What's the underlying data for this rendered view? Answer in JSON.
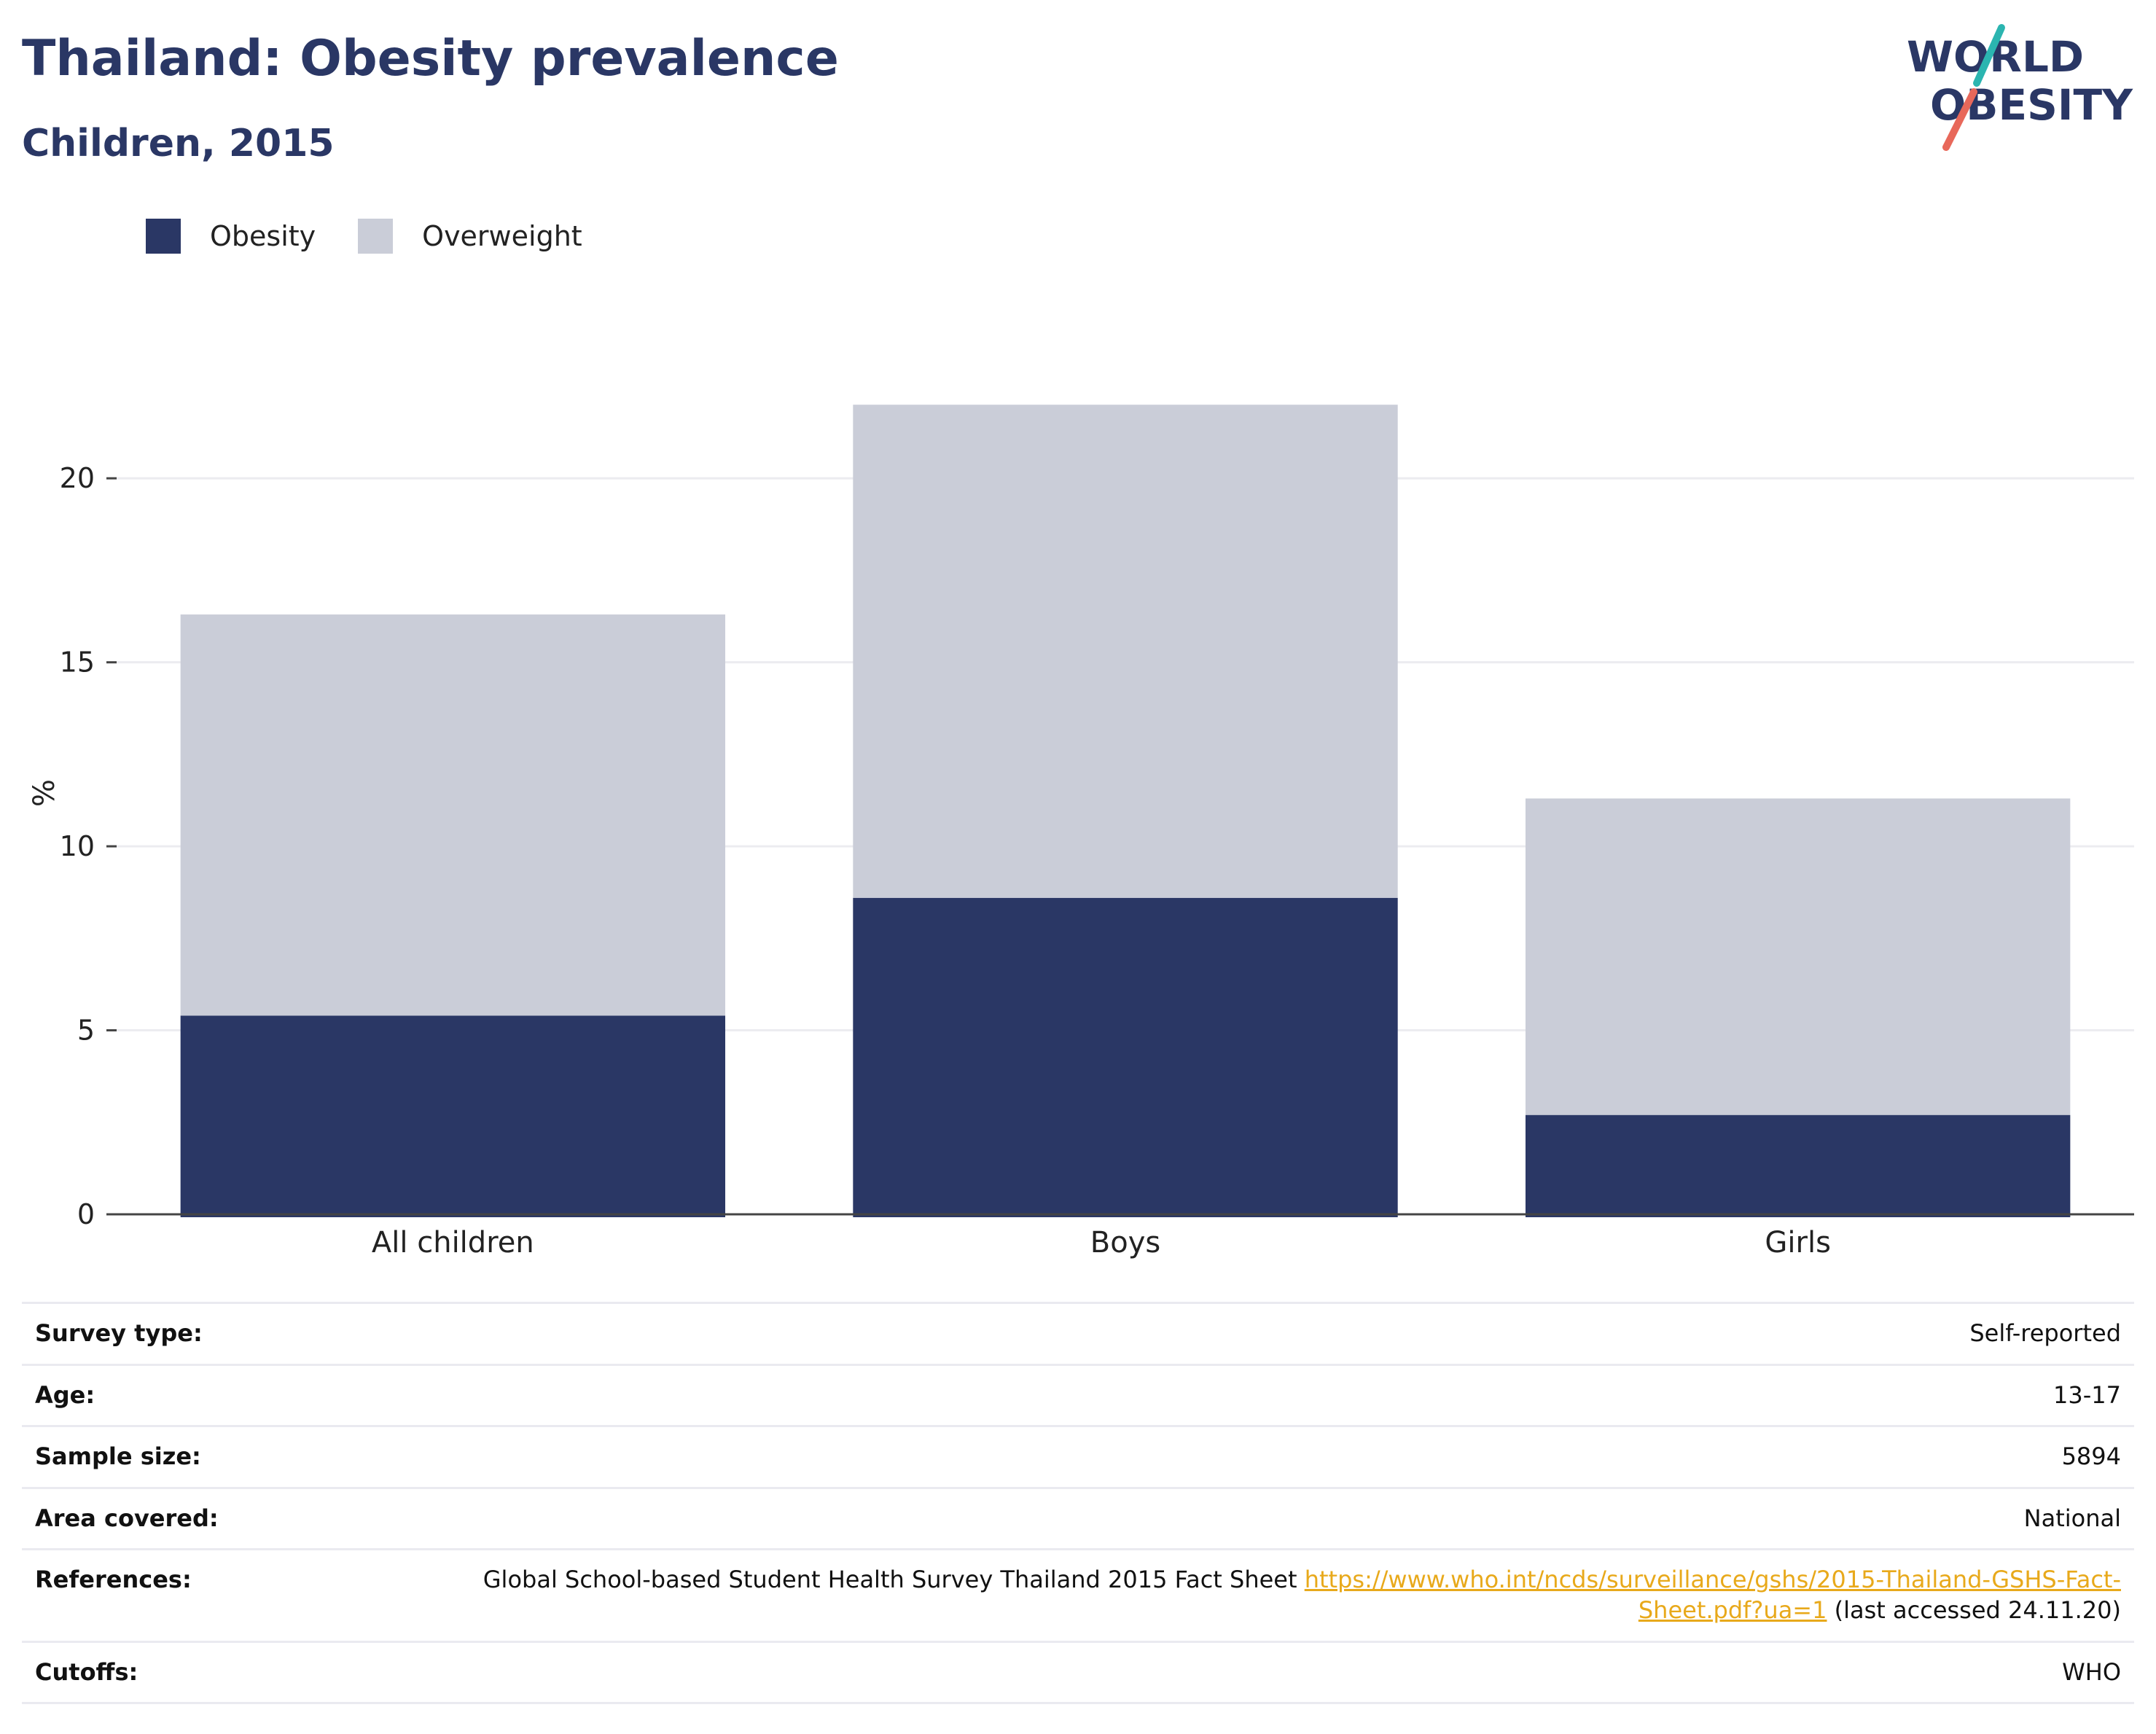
{
  "header": {
    "title": "Thailand: Obesity prevalence",
    "subtitle": "Children, 2015"
  },
  "logo": {
    "line1": "WORLD",
    "line2": "OBESITY"
  },
  "colors": {
    "obesity": "#2a3765",
    "overweight": "#cacdd8",
    "title": "#2a3765",
    "link": "#e8a91b",
    "logo_teal": "#2bb5b0",
    "logo_coral": "#e8685a"
  },
  "chart_data": {
    "type": "bar",
    "stacked": true,
    "categories": [
      "All children",
      "Boys",
      "Girls"
    ],
    "series": [
      {
        "name": "Obesity",
        "values": [
          5.4,
          8.6,
          2.7
        ]
      },
      {
        "name": "Overweight",
        "values": [
          10.9,
          13.4,
          8.6
        ]
      }
    ],
    "ylabel": "%",
    "ylim": [
      0,
      22.5
    ],
    "yticks": [
      0,
      5,
      10,
      15,
      20
    ],
    "grid": true,
    "legend_position": "top-left"
  },
  "metadata": {
    "rows": [
      {
        "label": "Survey type:",
        "value": "Self-reported"
      },
      {
        "label": "Age:",
        "value": "13-17"
      },
      {
        "label": "Sample size:",
        "value": "5894"
      },
      {
        "label": "Area covered:",
        "value": "National"
      },
      {
        "label": "References:",
        "text": "Global School-based Student Health Survey Thailand 2015 Fact Sheet",
        "link": "https://www.who.int/ncds/surveillance/gshs/2015-Thailand-GSHS-Fact-Sheet.pdf?ua=1",
        "suffix": "(last accessed 24.11.20)"
      },
      {
        "label": "Cutoffs:",
        "value": "WHO"
      }
    ]
  }
}
